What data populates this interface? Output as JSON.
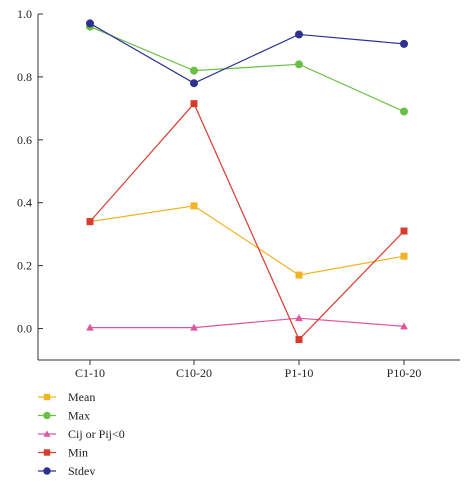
{
  "chart_data": {
    "type": "line",
    "categories": [
      "C1-10",
      "C10-20",
      "P1-10",
      "P10-20"
    ],
    "ylim": [
      -0.1,
      1.0
    ],
    "yticks": [
      "0.0",
      "0.2",
      "0.4",
      "0.6",
      "0.8",
      "1.0"
    ],
    "ytick_values": [
      0.0,
      0.2,
      0.4,
      0.6,
      0.8,
      1.0
    ],
    "legend_position": "bottom-left",
    "grid": false,
    "series": [
      {
        "name": "Mean",
        "values": [
          0.34,
          0.39,
          0.17,
          0.23
        ],
        "color": "#f0b323",
        "marker": "square"
      },
      {
        "name": "Max",
        "values": [
          0.96,
          0.82,
          0.84,
          0.69
        ],
        "color": "#6abf45",
        "marker": "circle"
      },
      {
        "name": "Cij or Pij<0",
        "values": [
          0.003,
          0.003,
          0.033,
          0.007
        ],
        "color": "#e0559e",
        "marker": "triangle"
      },
      {
        "name": "Min",
        "values": [
          0.34,
          0.715,
          -0.035,
          0.31
        ],
        "color": "#d73b2c",
        "marker": "square"
      },
      {
        "name": "Stdev",
        "values": [
          0.97,
          0.78,
          0.935,
          0.905
        ],
        "color": "#2e3192",
        "marker": "circle"
      }
    ]
  }
}
